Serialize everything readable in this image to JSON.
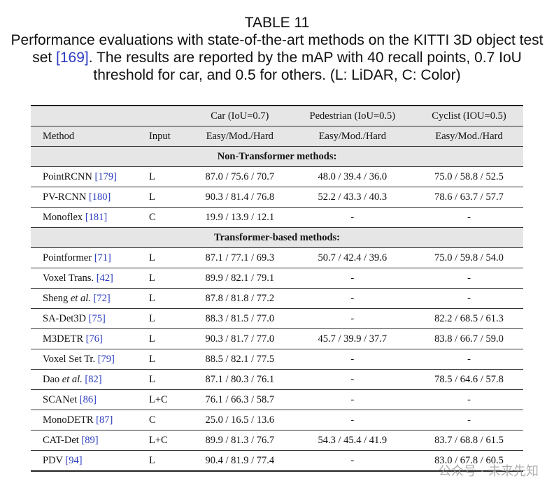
{
  "caption": {
    "label": "TABLE 11",
    "text_before": "Performance evaluations with state-of-the-art methods on the KITTI 3D object test set",
    "ref": "[169]",
    "text_after": ". The results are reported by the mAP with 40 recall points, 0.7 IoU threshold for car, and 0.5 for others. (L: LiDAR, C: Color)"
  },
  "table": {
    "group_headers": [
      "Car (IoU=0.7)",
      "Pedestrian (IoU=0.5)",
      "Cyclist (IOU=0.5)"
    ],
    "columns": [
      "Method",
      "Input",
      "Easy/Mod./Hard",
      "Easy/Mod./Hard",
      "Easy/Mod./Hard"
    ],
    "sections": [
      {
        "title": "Non-Transformer methods:",
        "rows": [
          {
            "method": "PointRCNN",
            "ref": "[179]",
            "input": "L",
            "car": "87.0 / 75.6 / 70.7",
            "pedestrian": "48.0 / 39.4 / 36.0",
            "cyclist": "75.0 / 58.8 / 52.5"
          },
          {
            "method": "PV-RCNN",
            "ref": "[180]",
            "input": "L",
            "car": "90.3 / 81.4 / 76.8",
            "pedestrian": "52.2 / 43.3 / 40.3",
            "cyclist": "78.6 / 63.7 / 57.7"
          },
          {
            "method": "Monoflex",
            "ref": "[181]",
            "input": "C",
            "car": "19.9 / 13.9 / 12.1",
            "pedestrian": "-",
            "cyclist": "-"
          }
        ]
      },
      {
        "title": "Transformer-based methods:",
        "rows": [
          {
            "method": "Pointformer",
            "ref": "[71]",
            "input": "L",
            "car": "87.1 / 77.1 / 69.3",
            "pedestrian": "50.7 / 42.4 / 39.6",
            "cyclist": "75.0 / 59.8 / 54.0"
          },
          {
            "method": "Voxel Trans.",
            "ref": "[42]",
            "input": "L",
            "car": "89.9 / 82.1 / 79.1",
            "pedestrian": "-",
            "cyclist": "-"
          },
          {
            "method": "Sheng",
            "method_italic": "et al.",
            "ref": "[72]",
            "input": "L",
            "car": "87.8 / 81.8 / 77.2",
            "pedestrian": "-",
            "cyclist": "-"
          },
          {
            "method": "SA-Det3D",
            "ref": "[75]",
            "input": "L",
            "car": "88.3 / 81.5 / 77.0",
            "pedestrian": "-",
            "cyclist": "82.2 / 68.5 / 61.3"
          },
          {
            "method": "M3DETR",
            "ref": "[76]",
            "input": "L",
            "car": "90.3 / 81.7 / 77.0",
            "pedestrian": "45.7 / 39.9 / 37.7",
            "cyclist": "83.8 / 66.7 / 59.0"
          },
          {
            "method": "Voxel Set Tr.",
            "ref": "[79]",
            "input": "L",
            "car": "88.5 / 82.1 / 77.5",
            "pedestrian": "-",
            "cyclist": "-"
          },
          {
            "method": "Dao",
            "method_italic": "et al.",
            "ref": "[82]",
            "input": "L",
            "car": "87.1 / 80.3 / 76.1",
            "pedestrian": "-",
            "cyclist": "78.5 / 64.6 / 57.8"
          },
          {
            "method": "SCANet",
            "ref": "[86]",
            "input": "L+C",
            "car": "76.1 / 66.3 / 58.7",
            "pedestrian": "-",
            "cyclist": "-"
          },
          {
            "method": "MonoDETR",
            "ref": "[87]",
            "input": "C",
            "car": "25.0 / 16.5 / 13.6",
            "pedestrian": "-",
            "cyclist": "-"
          },
          {
            "method": "CAT-Det",
            "ref": "[89]",
            "input": "L+C",
            "car": "89.9 / 81.3 / 76.7",
            "pedestrian": "54.3 / 45.4 / 41.9",
            "cyclist": "83.7 / 68.8 / 61.5"
          },
          {
            "method": "PDV",
            "ref": "[94]",
            "input": "L",
            "car": "90.4 / 81.9 / 77.4",
            "pedestrian": "-",
            "cyclist": "83.0 / 67.8 / 60.5"
          }
        ]
      }
    ]
  },
  "watermark": "公众号 · 未来先知"
}
